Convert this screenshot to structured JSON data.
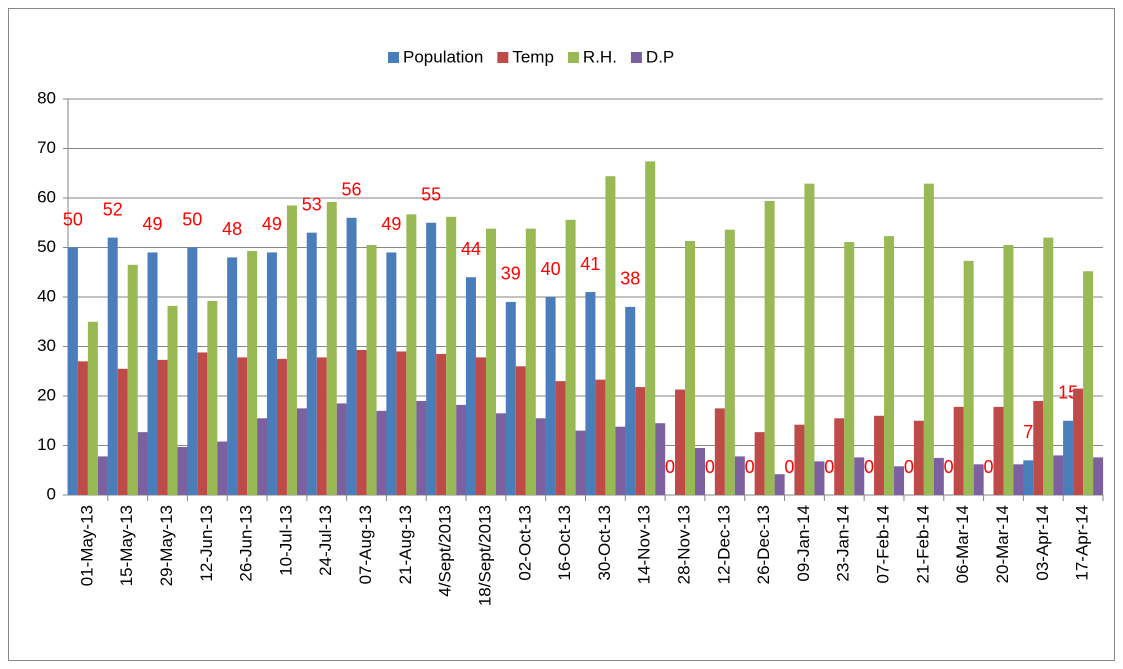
{
  "chart_data": {
    "type": "bar",
    "categories": [
      "01-May-13",
      "15-May-13",
      "29-May-13",
      "12-Jun-13",
      "26-Jun-13",
      "10-Jul-13",
      "24-Jul-13",
      "07-Aug-13",
      "21-Aug-13",
      "4/Sept/2013",
      "18/Sept/2013",
      "02-Oct-13",
      "16-Oct-13",
      "30-Oct-13",
      "14-Nov-13",
      "28-Nov-13",
      "12-Dec-13",
      "26-Dec-13",
      "09-Jan-14",
      "23-Jan-14",
      "07-Feb-14",
      "21-Feb-14",
      "06-Mar-14",
      "20-Mar-14",
      "03-Apr-14",
      "17-Apr-14"
    ],
    "series": [
      {
        "name": "Population",
        "color": "#4a7ebb",
        "values": [
          50,
          52,
          49,
          50,
          48,
          49,
          53,
          56,
          49,
          55,
          44,
          39,
          40,
          41,
          38,
          0,
          0,
          0,
          0,
          0,
          0,
          0,
          0,
          0,
          7,
          15
        ],
        "data_labels": true
      },
      {
        "name": "Temp",
        "color": "#be4b48",
        "values": [
          27,
          25.5,
          27.3,
          28.8,
          27.8,
          27.5,
          27.8,
          29.3,
          29,
          28.5,
          27.8,
          26,
          23,
          23.3,
          21.8,
          21.3,
          17.5,
          12.7,
          14.2,
          15.5,
          16,
          15,
          17.8,
          17.8,
          19,
          21.5
        ]
      },
      {
        "name": "R.H.",
        "color": "#98b954",
        "values": [
          35,
          46.5,
          38.2,
          39.2,
          49.3,
          58.5,
          59.2,
          50.5,
          56.7,
          56.2,
          53.8,
          53.8,
          55.6,
          64.4,
          67.4,
          51.3,
          53.6,
          59.4,
          62.9,
          51.1,
          52.3,
          62.9,
          47.3,
          50.5,
          52,
          45.2
        ]
      },
      {
        "name": "D.P",
        "color": "#7d60a0",
        "values": [
          7.8,
          12.7,
          9.7,
          10.8,
          15.5,
          17.5,
          18.5,
          17,
          19,
          18.2,
          16.5,
          15.5,
          13,
          13.8,
          14.5,
          9.5,
          7.8,
          4.2,
          6.8,
          7.6,
          5.8,
          7.5,
          6.2,
          6.2,
          8,
          7.6
        ]
      }
    ],
    "ylim": [
      0,
      80
    ],
    "yticks": [
      0,
      10,
      20,
      30,
      40,
      50,
      60,
      70,
      80
    ],
    "grid": true,
    "legend": "top"
  }
}
